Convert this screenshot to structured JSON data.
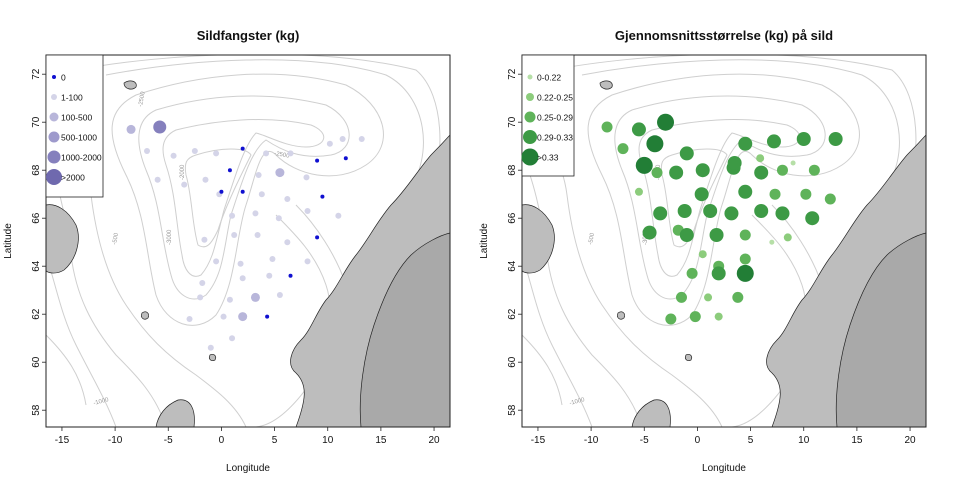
{
  "left_map": {
    "title": "Sildfangster (kg)",
    "xlabel": "Longitude",
    "ylabel": "Latitude",
    "legend": [
      {
        "label": "0",
        "color": "#1010d0"
      },
      {
        "label": "1-100",
        "color": "#d4d4e8"
      },
      {
        "label": "100-500",
        "color": "#b8b6da"
      },
      {
        "label": "500-1000",
        "color": "#9e9acc"
      },
      {
        "label": "1000-2000",
        "color": "#8580bd"
      },
      {
        "label": ">2000",
        "color": "#6f69ae"
      }
    ]
  },
  "right_map": {
    "title": "Gjennomsnittsstørrelse (kg) på sild",
    "xlabel": "Longitude",
    "ylabel": "Latitude",
    "legend": [
      {
        "label": "0-0.22",
        "color": "#b6dfa7"
      },
      {
        "label": "0.22-0.25",
        "color": "#8ccc7c"
      },
      {
        "label": "0.25-0.29",
        "color": "#5fb35a"
      },
      {
        "label": "0.29-0.33",
        "color": "#3d9a45"
      },
      {
        "label": ">0.33",
        "color": "#227e36"
      }
    ]
  },
  "axes": {
    "xlim": [
      -16.5,
      21.5
    ],
    "ylim": [
      57.3,
      72.8
    ],
    "xticks": [
      "-15",
      "-10",
      "-5",
      "0",
      "5",
      "10",
      "15",
      "20"
    ],
    "yticks": [
      "58",
      "60",
      "62",
      "64",
      "66",
      "68",
      "70",
      "72"
    ]
  },
  "contour_labels": [
    "-3000",
    "-2500",
    "-2000",
    "-1500",
    "-1000",
    "-500"
  ],
  "colors": {
    "land": "#bdbdbd",
    "contour": "#cfcfcf",
    "frame": "#222222"
  },
  "left_points": [
    {
      "lon": -13.0,
      "lat": 69.5,
      "cls": 3
    },
    {
      "lon": -8.5,
      "lat": 69.7,
      "cls": 2
    },
    {
      "lon": -5.8,
      "lat": 69.8,
      "cls": 4
    },
    {
      "lon": -7.0,
      "lat": 68.8,
      "cls": 1
    },
    {
      "lon": -4.5,
      "lat": 68.6,
      "cls": 1
    },
    {
      "lon": -2.5,
      "lat": 68.8,
      "cls": 1
    },
    {
      "lon": -0.5,
      "lat": 68.7,
      "cls": 1
    },
    {
      "lon": 2.0,
      "lat": 68.9,
      "cls": 0
    },
    {
      "lon": 4.2,
      "lat": 68.7,
      "cls": 1
    },
    {
      "lon": 6.5,
      "lat": 68.7,
      "cls": 1
    },
    {
      "lon": 9.0,
      "lat": 68.4,
      "cls": 0
    },
    {
      "lon": 11.7,
      "lat": 68.5,
      "cls": 0
    },
    {
      "lon": 10.2,
      "lat": 69.1,
      "cls": 1
    },
    {
      "lon": 11.4,
      "lat": 69.3,
      "cls": 1
    },
    {
      "lon": 13.2,
      "lat": 69.3,
      "cls": 1
    },
    {
      "lon": -6.0,
      "lat": 67.6,
      "cls": 1
    },
    {
      "lon": -3.5,
      "lat": 67.4,
      "cls": 1
    },
    {
      "lon": -1.5,
      "lat": 67.6,
      "cls": 1
    },
    {
      "lon": 0.8,
      "lat": 68.0,
      "cls": 0
    },
    {
      "lon": 3.5,
      "lat": 67.8,
      "cls": 1
    },
    {
      "lon": 5.5,
      "lat": 67.9,
      "cls": 2
    },
    {
      "lon": 8.0,
      "lat": 67.7,
      "cls": 1
    },
    {
      "lon": -0.2,
      "lat": 67.0,
      "cls": 1
    },
    {
      "lon": 0.0,
      "lat": 67.1,
      "cls": 0
    },
    {
      "lon": 2.0,
      "lat": 67.1,
      "cls": 0
    },
    {
      "lon": 3.8,
      "lat": 67.0,
      "cls": 1
    },
    {
      "lon": 6.2,
      "lat": 66.8,
      "cls": 1
    },
    {
      "lon": 9.5,
      "lat": 66.9,
      "cls": 0
    },
    {
      "lon": 1.0,
      "lat": 66.1,
      "cls": 1
    },
    {
      "lon": 3.2,
      "lat": 66.2,
      "cls": 1
    },
    {
      "lon": 5.4,
      "lat": 66.0,
      "cls": 1
    },
    {
      "lon": 8.1,
      "lat": 66.3,
      "cls": 1
    },
    {
      "lon": 11.0,
      "lat": 66.1,
      "cls": 1
    },
    {
      "lon": -1.6,
      "lat": 65.1,
      "cls": 1
    },
    {
      "lon": 1.2,
      "lat": 65.3,
      "cls": 1
    },
    {
      "lon": 3.4,
      "lat": 65.3,
      "cls": 1
    },
    {
      "lon": 6.2,
      "lat": 65.0,
      "cls": 1
    },
    {
      "lon": 9.0,
      "lat": 65.2,
      "cls": 0
    },
    {
      "lon": -0.5,
      "lat": 64.2,
      "cls": 1
    },
    {
      "lon": 1.8,
      "lat": 64.1,
      "cls": 1
    },
    {
      "lon": 4.8,
      "lat": 64.3,
      "cls": 1
    },
    {
      "lon": 8.1,
      "lat": 64.2,
      "cls": 1
    },
    {
      "lon": -1.8,
      "lat": 63.3,
      "cls": 1
    },
    {
      "lon": 2.0,
      "lat": 63.5,
      "cls": 1
    },
    {
      "lon": 4.5,
      "lat": 63.6,
      "cls": 1
    },
    {
      "lon": 6.5,
      "lat": 63.6,
      "cls": 0
    },
    {
      "lon": -2.0,
      "lat": 62.7,
      "cls": 1
    },
    {
      "lon": 0.8,
      "lat": 62.6,
      "cls": 1
    },
    {
      "lon": 3.2,
      "lat": 62.7,
      "cls": 2
    },
    {
      "lon": 5.5,
      "lat": 62.8,
      "cls": 1
    },
    {
      "lon": -3.0,
      "lat": 61.8,
      "cls": 1
    },
    {
      "lon": 0.2,
      "lat": 61.9,
      "cls": 1
    },
    {
      "lon": 2.0,
      "lat": 61.9,
      "cls": 2
    },
    {
      "lon": 4.3,
      "lat": 61.9,
      "cls": 0
    },
    {
      "lon": 1.0,
      "lat": 61.0,
      "cls": 1
    },
    {
      "lon": -1.0,
      "lat": 60.6,
      "cls": 1
    }
  ],
  "right_points": [
    {
      "lon": -13.0,
      "lat": 69.5,
      "cls": 4
    },
    {
      "lon": -8.5,
      "lat": 69.8,
      "cls": 2
    },
    {
      "lon": -5.5,
      "lat": 69.7,
      "cls": 3
    },
    {
      "lon": -3.0,
      "lat": 70.0,
      "cls": 4
    },
    {
      "lon": -7.0,
      "lat": 68.9,
      "cls": 2
    },
    {
      "lon": -4.0,
      "lat": 69.1,
      "cls": 4
    },
    {
      "lon": -1.0,
      "lat": 68.7,
      "cls": 3
    },
    {
      "lon": 4.5,
      "lat": 69.1,
      "cls": 3
    },
    {
      "lon": 7.2,
      "lat": 69.2,
      "cls": 3
    },
    {
      "lon": 10.0,
      "lat": 69.3,
      "cls": 3
    },
    {
      "lon": 13.0,
      "lat": 69.3,
      "cls": 3
    },
    {
      "lon": -5.0,
      "lat": 68.2,
      "cls": 4
    },
    {
      "lon": -3.8,
      "lat": 67.9,
      "cls": 2
    },
    {
      "lon": -2.0,
      "lat": 67.9,
      "cls": 3
    },
    {
      "lon": 0.5,
      "lat": 68.0,
      "cls": 3
    },
    {
      "lon": 3.4,
      "lat": 68.1,
      "cls": 3
    },
    {
      "lon": 3.5,
      "lat": 68.3,
      "cls": 3
    },
    {
      "lon": 6.0,
      "lat": 67.9,
      "cls": 3
    },
    {
      "lon": 8.0,
      "lat": 68.0,
      "cls": 2
    },
    {
      "lon": 9.0,
      "lat": 68.3,
      "cls": 0
    },
    {
      "lon": 11.0,
      "lat": 68.0,
      "cls": 2
    },
    {
      "lon": 5.9,
      "lat": 68.5,
      "cls": 1
    },
    {
      "lon": -5.5,
      "lat": 67.1,
      "cls": 1
    },
    {
      "lon": 0.4,
      "lat": 67.0,
      "cls": 3
    },
    {
      "lon": 4.5,
      "lat": 67.1,
      "cls": 3
    },
    {
      "lon": 7.3,
      "lat": 67.0,
      "cls": 2
    },
    {
      "lon": 10.2,
      "lat": 67.0,
      "cls": 2
    },
    {
      "lon": -3.5,
      "lat": 66.2,
      "cls": 3
    },
    {
      "lon": -1.2,
      "lat": 66.3,
      "cls": 3
    },
    {
      "lon": 1.2,
      "lat": 66.3,
      "cls": 3
    },
    {
      "lon": 3.2,
      "lat": 66.2,
      "cls": 3
    },
    {
      "lon": 6.0,
      "lat": 66.3,
      "cls": 3
    },
    {
      "lon": 8.0,
      "lat": 66.2,
      "cls": 3
    },
    {
      "lon": 10.8,
      "lat": 66.0,
      "cls": 3
    },
    {
      "lon": 12.5,
      "lat": 66.8,
      "cls": 2
    },
    {
      "lon": -1.8,
      "lat": 65.5,
      "cls": 2
    },
    {
      "lon": -4.5,
      "lat": 65.4,
      "cls": 3
    },
    {
      "lon": -1.0,
      "lat": 65.3,
      "cls": 3
    },
    {
      "lon": 1.8,
      "lat": 65.3,
      "cls": 3
    },
    {
      "lon": 4.5,
      "lat": 65.3,
      "cls": 2
    },
    {
      "lon": 8.5,
      "lat": 65.2,
      "cls": 1
    },
    {
      "lon": 0.5,
      "lat": 64.5,
      "cls": 1
    },
    {
      "lon": 2.0,
      "lat": 64.0,
      "cls": 2
    },
    {
      "lon": 4.5,
      "lat": 64.3,
      "cls": 2
    },
    {
      "lon": -0.5,
      "lat": 63.7,
      "cls": 2
    },
    {
      "lon": 2.0,
      "lat": 63.7,
      "cls": 3
    },
    {
      "lon": 4.5,
      "lat": 63.7,
      "cls": 4
    },
    {
      "lon": -1.5,
      "lat": 62.7,
      "cls": 2
    },
    {
      "lon": 1.0,
      "lat": 62.7,
      "cls": 1
    },
    {
      "lon": 3.8,
      "lat": 62.7,
      "cls": 2
    },
    {
      "lon": -2.5,
      "lat": 61.8,
      "cls": 2
    },
    {
      "lon": -0.2,
      "lat": 61.9,
      "cls": 2
    },
    {
      "lon": 2.0,
      "lat": 61.9,
      "cls": 1
    },
    {
      "lon": 7.0,
      "lat": 65.0,
      "cls": 0
    }
  ]
}
